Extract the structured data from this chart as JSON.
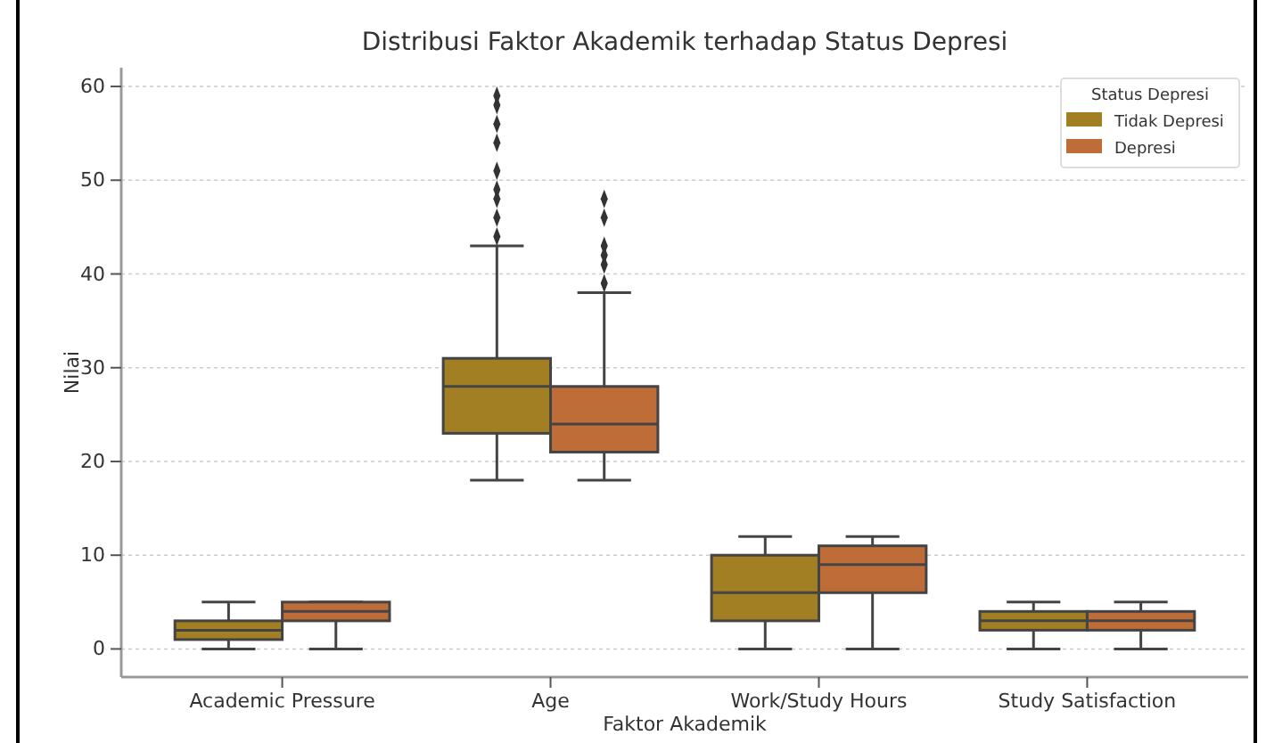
{
  "chart_data": {
    "type": "box",
    "title": "Distribusi Faktor Akademik terhadap Status Depresi",
    "xlabel": "Faktor Akademik",
    "ylabel": "Nilai",
    "legend_title": "Status Depresi",
    "legend": "top right",
    "grid": "y",
    "categories": [
      "Academic Pressure",
      "Age",
      "Work/Study Hours",
      "Study Satisfaction"
    ],
    "ylim": [
      -3,
      62
    ],
    "yticks": [
      0,
      10,
      20,
      30,
      40,
      50,
      60
    ],
    "series": [
      {
        "name": "Tidak Depresi",
        "color": "#a27f23",
        "boxes": [
          {
            "low": 0,
            "q1": 1,
            "median": 2,
            "q3": 3,
            "high": 5
          },
          {
            "low": 18,
            "q1": 23,
            "median": 28,
            "q3": 31,
            "high": 43,
            "outliers": [
              44,
              46,
              48,
              49,
              51,
              54,
              56,
              58,
              59
            ]
          },
          {
            "low": 0,
            "q1": 3,
            "median": 6,
            "q3": 10,
            "high": 12
          },
          {
            "low": 0,
            "q1": 2,
            "median": 3,
            "q3": 4,
            "high": 5
          }
        ]
      },
      {
        "name": "Depresi",
        "color": "#be6d38",
        "boxes": [
          {
            "low": 0,
            "q1": 3,
            "median": 4,
            "q3": 5,
            "high": 5
          },
          {
            "low": 18,
            "q1": 21,
            "median": 24,
            "q3": 28,
            "high": 38,
            "outliers": [
              39,
              41,
              42,
              43,
              46,
              48
            ]
          },
          {
            "low": 0,
            "q1": 6,
            "median": 9,
            "q3": 11,
            "high": 12
          },
          {
            "low": 0,
            "q1": 2,
            "median": 3,
            "q3": 4,
            "high": 5
          }
        ]
      }
    ]
  }
}
